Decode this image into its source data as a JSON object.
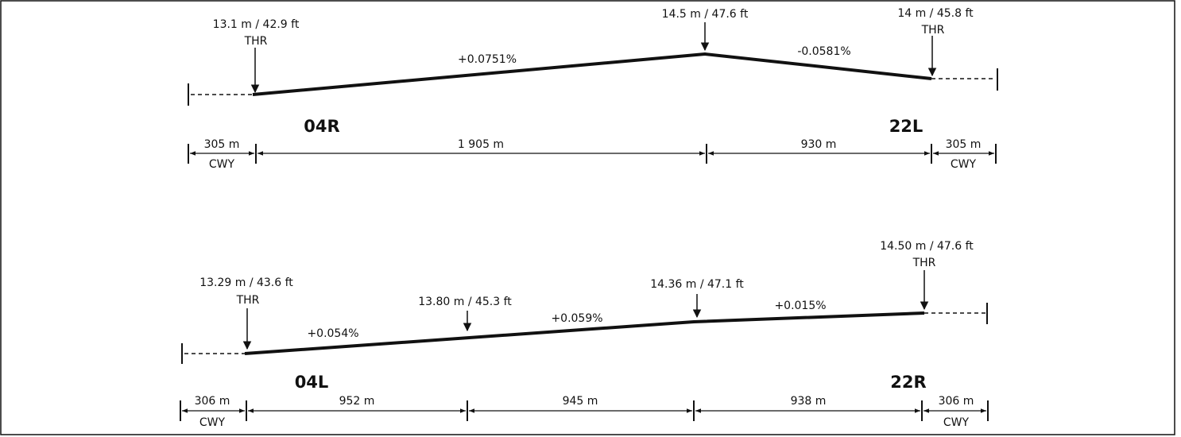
{
  "profiles": [
    {
      "points": [
        {
          "elevation": "13.1 m / 42.9 ft",
          "label": "THR"
        },
        {
          "elevation": "14.5 m / 47.6 ft"
        },
        {
          "elevation": "14 m / 45.8 ft",
          "label": "THR"
        }
      ],
      "slopes": [
        "+0.0751%",
        "-0.0581%"
      ],
      "designators": [
        "04R",
        "22L"
      ],
      "segments": [
        "305 m",
        "1 905 m",
        "930 m",
        "305 m"
      ],
      "clearways": [
        "CWY",
        "CWY"
      ]
    },
    {
      "points": [
        {
          "elevation": "13.29 m / 43.6 ft",
          "label": "THR"
        },
        {
          "elevation": "13.80 m / 45.3 ft"
        },
        {
          "elevation": "14.36 m / 47.1 ft"
        },
        {
          "elevation": "14.50 m / 47.6 ft",
          "label": "THR"
        }
      ],
      "slopes": [
        "+0.054%",
        "+0.059%",
        "+0.015%"
      ],
      "designators": [
        "04L",
        "22R"
      ],
      "segments": [
        "306 m",
        "952 m",
        "945 m",
        "938 m",
        "306 m"
      ],
      "clearways": [
        "CWY",
        "CWY"
      ]
    }
  ]
}
